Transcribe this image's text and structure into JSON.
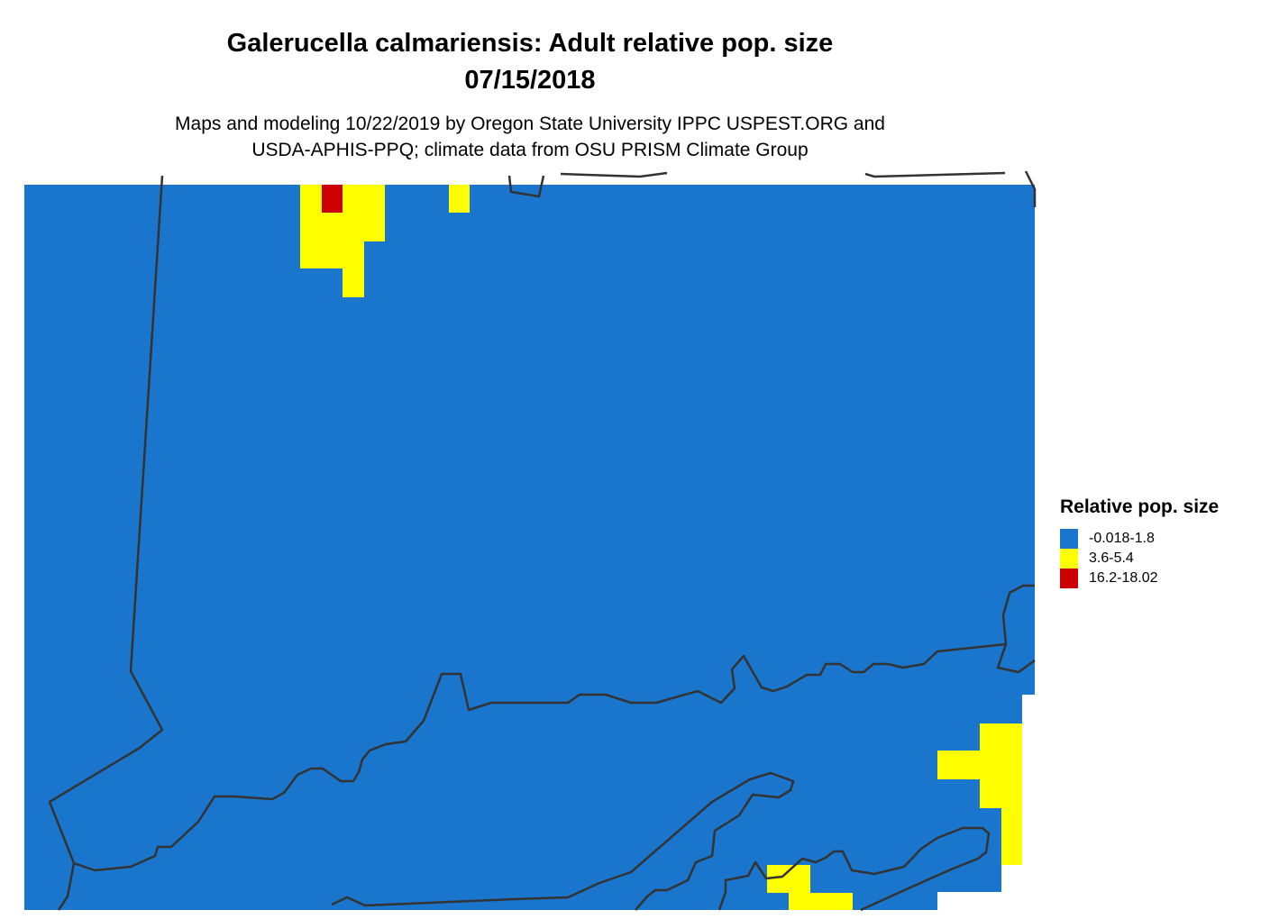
{
  "title": {
    "line1": "Galerucella calmariensis: Adult relative pop. size",
    "line2": "07/15/2018"
  },
  "subtitle": {
    "line1": "Maps and modeling 10/22/2019 by Oregon State University IPPC USPEST.ORG and",
    "line2": "USDA-APHIS-PPQ; climate data from OSU PRISM Climate Group"
  },
  "legend": {
    "title": "Relative pop. size",
    "items": [
      {
        "label": "-0.018-1.8",
        "color": "#1a75cc"
      },
      {
        "label": "3.6-5.4",
        "color": "#ffff00"
      },
      {
        "label": "16.2-18.02",
        "color": "#cc0000"
      }
    ]
  },
  "colors": {
    "boundary": "#333333"
  }
}
